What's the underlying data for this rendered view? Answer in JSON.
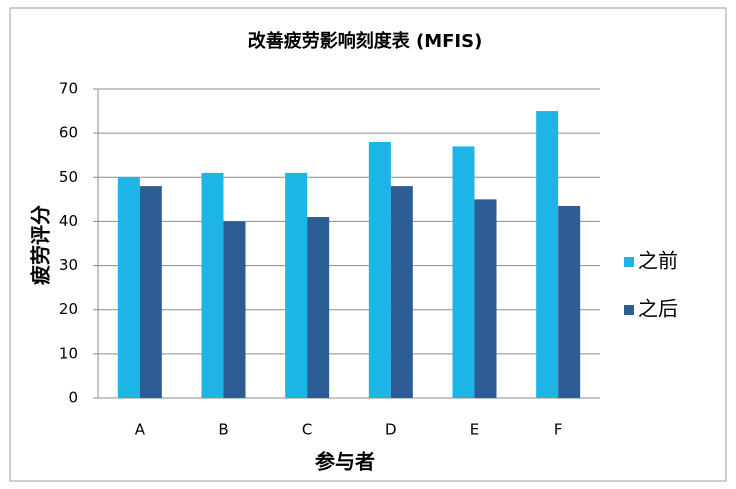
{
  "chart_data": {
    "type": "bar",
    "title": "改善疲劳影响刻度表 (MFIS)",
    "y_label": "疲劳评分",
    "x_label": "参与者",
    "categories": [
      "A",
      "B",
      "C",
      "D",
      "E",
      "F"
    ],
    "series": [
      {
        "name": "之前",
        "color": "#1cb5e6",
        "values": [
          50,
          51,
          51,
          58,
          57,
          65
        ]
      },
      {
        "name": "之后",
        "color": "#2e5d96",
        "values": [
          48,
          40,
          41,
          48,
          45,
          43.5
        ]
      }
    ],
    "ylim": [
      0,
      70
    ],
    "yticks": [
      0,
      10,
      20,
      30,
      40,
      50,
      60,
      70
    ],
    "grid": true,
    "legend": "right"
  }
}
